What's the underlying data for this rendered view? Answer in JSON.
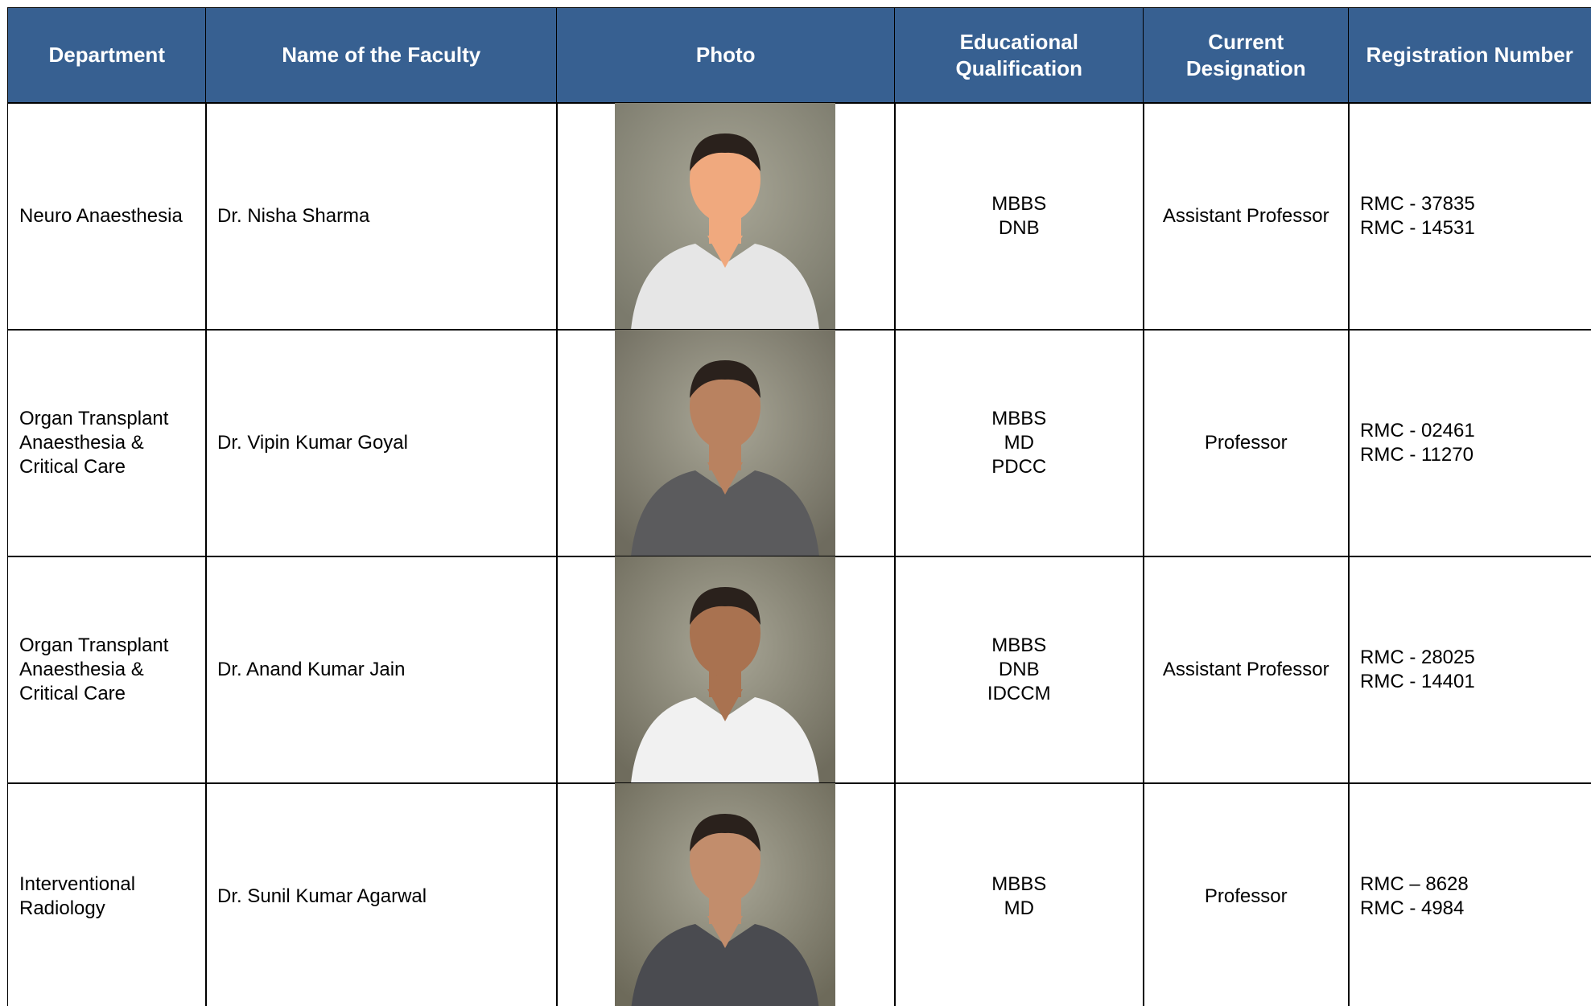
{
  "table": {
    "headers": [
      "Department",
      "Name of the Faculty",
      "Photo",
      "Educational Qualification",
      "Current Designation",
      "Registration Number"
    ],
    "rows": [
      {
        "department": "Neuro Anaesthesia",
        "name": "Dr. Nisha Sharma",
        "qualification": [
          "MBBS",
          "DNB"
        ],
        "designation": "Assistant Professor",
        "registration": [
          "RMC - 37835",
          "RMC - 14531"
        ]
      },
      {
        "department": "Organ Transplant Anaesthesia & Critical Care",
        "name": "Dr. Vipin Kumar Goyal",
        "qualification": [
          "MBBS",
          "MD",
          "PDCC"
        ],
        "designation": "Professor",
        "registration": [
          "RMC - 02461",
          "RMC - 11270"
        ]
      },
      {
        "department": "Organ Transplant Anaesthesia & Critical Care",
        "name": "Dr. Anand Kumar Jain",
        "qualification": [
          "MBBS",
          "DNB",
          "IDCCM"
        ],
        "designation": "Assistant Professor",
        "registration": [
          "RMC - 28025",
          "RMC - 14401"
        ]
      },
      {
        "department": "Interventional Radiology",
        "name": "Dr. Sunil Kumar Agarwal",
        "qualification": [
          "MBBS",
          "MD"
        ],
        "designation": "Professor",
        "registration": [
          "RMC – 8628",
          "RMC - 4984"
        ]
      }
    ]
  }
}
